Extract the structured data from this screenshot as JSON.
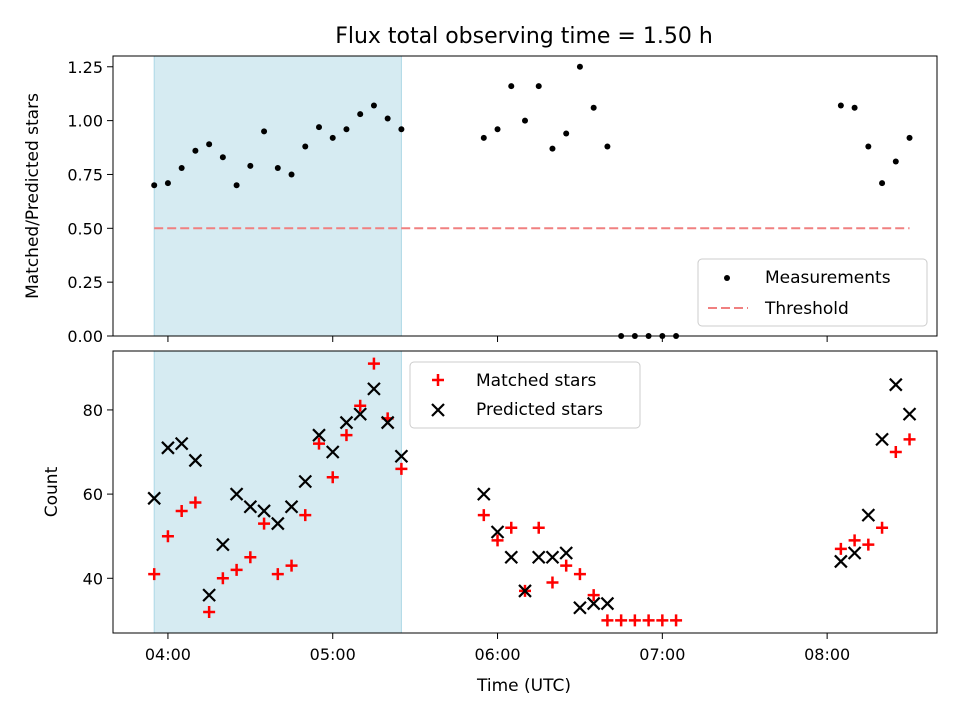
{
  "chart_data": [
    {
      "type": "scatter",
      "title": "Flux total observing time = 1.50 h",
      "xlabel": "",
      "ylabel": "Matched/Predicted stars",
      "xlim": [
        "03:40",
        "08:40"
      ],
      "ylim": [
        0,
        1.3
      ],
      "yticks": [
        "0.00",
        "0.25",
        "0.50",
        "0.75",
        "1.00",
        "1.25"
      ],
      "xticks": [
        "04:00",
        "05:00",
        "06:00",
        "07:00",
        "08:00"
      ],
      "shaded_region": {
        "start": "03:55",
        "end": "05:25",
        "color": "#add8e6"
      },
      "legend": {
        "position": "lower right",
        "entries": [
          "Measurements",
          "Threshold"
        ]
      },
      "series": [
        {
          "name": "Measurements",
          "marker": "dot",
          "color": "#000000",
          "points": [
            [
              "03:55",
              0.7
            ],
            [
              "04:00",
              0.71
            ],
            [
              "04:05",
              0.78
            ],
            [
              "04:10",
              0.86
            ],
            [
              "04:15",
              0.89
            ],
            [
              "04:20",
              0.83
            ],
            [
              "04:25",
              0.7
            ],
            [
              "04:30",
              0.79
            ],
            [
              "04:35",
              0.95
            ],
            [
              "04:40",
              0.78
            ],
            [
              "04:45",
              0.75
            ],
            [
              "04:50",
              0.88
            ],
            [
              "04:55",
              0.97
            ],
            [
              "05:00",
              0.92
            ],
            [
              "05:05",
              0.96
            ],
            [
              "05:10",
              1.03
            ],
            [
              "05:15",
              1.07
            ],
            [
              "05:20",
              1.01
            ],
            [
              "05:25",
              0.96
            ],
            [
              "05:55",
              0.92
            ],
            [
              "06:00",
              0.96
            ],
            [
              "06:05",
              1.16
            ],
            [
              "06:10",
              1.0
            ],
            [
              "06:15",
              1.16
            ],
            [
              "06:20",
              0.87
            ],
            [
              "06:25",
              0.94
            ],
            [
              "06:30",
              1.25
            ],
            [
              "06:35",
              1.06
            ],
            [
              "06:40",
              0.88
            ],
            [
              "06:45",
              0.0
            ],
            [
              "06:50",
              0.0
            ],
            [
              "06:55",
              0.0
            ],
            [
              "07:00",
              0.0
            ],
            [
              "07:05",
              0.0
            ],
            [
              "08:05",
              1.07
            ],
            [
              "08:10",
              1.06
            ],
            [
              "08:15",
              0.88
            ],
            [
              "08:20",
              0.71
            ],
            [
              "08:25",
              0.81
            ],
            [
              "08:30",
              0.92
            ]
          ]
        },
        {
          "name": "Threshold",
          "marker": "dashed-line",
          "color": "#f08080",
          "points": [
            [
              "03:55",
              0.5
            ],
            [
              "08:30",
              0.5
            ]
          ]
        }
      ]
    },
    {
      "type": "scatter",
      "title": "",
      "xlabel": "Time (UTC)",
      "ylabel": "Count",
      "xlim": [
        "03:40",
        "08:40"
      ],
      "ylim": [
        27,
        94
      ],
      "yticks": [
        "40",
        "60",
        "80"
      ],
      "xticks": [
        "04:00",
        "05:00",
        "06:00",
        "07:00",
        "08:00"
      ],
      "shaded_region": {
        "start": "03:55",
        "end": "05:25",
        "color": "#add8e6"
      },
      "legend": {
        "position": "top center",
        "entries": [
          "Matched stars",
          "Predicted stars"
        ]
      },
      "series": [
        {
          "name": "Matched stars",
          "marker": "plus",
          "color": "#ff0000",
          "points": [
            [
              "03:55",
              41
            ],
            [
              "04:00",
              50
            ],
            [
              "04:05",
              56
            ],
            [
              "04:10",
              58
            ],
            [
              "04:15",
              32
            ],
            [
              "04:20",
              40
            ],
            [
              "04:25",
              42
            ],
            [
              "04:30",
              45
            ],
            [
              "04:35",
              53
            ],
            [
              "04:40",
              41
            ],
            [
              "04:45",
              43
            ],
            [
              "04:50",
              55
            ],
            [
              "04:55",
              72
            ],
            [
              "05:00",
              64
            ],
            [
              "05:05",
              74
            ],
            [
              "05:10",
              81
            ],
            [
              "05:15",
              91
            ],
            [
              "05:20",
              78
            ],
            [
              "05:25",
              66
            ],
            [
              "05:55",
              55
            ],
            [
              "06:00",
              49
            ],
            [
              "06:05",
              52
            ],
            [
              "06:10",
              37
            ],
            [
              "06:15",
              52
            ],
            [
              "06:20",
              39
            ],
            [
              "06:25",
              43
            ],
            [
              "06:30",
              41
            ],
            [
              "06:35",
              36
            ],
            [
              "06:40",
              30
            ],
            [
              "06:45",
              30
            ],
            [
              "06:50",
              30
            ],
            [
              "06:55",
              30
            ],
            [
              "07:00",
              30
            ],
            [
              "07:05",
              30
            ],
            [
              "08:05",
              47
            ],
            [
              "08:10",
              49
            ],
            [
              "08:15",
              48
            ],
            [
              "08:20",
              52
            ],
            [
              "08:25",
              70
            ],
            [
              "08:30",
              73
            ]
          ]
        },
        {
          "name": "Predicted stars",
          "marker": "x",
          "color": "#000000",
          "points": [
            [
              "03:55",
              59
            ],
            [
              "04:00",
              71
            ],
            [
              "04:05",
              72
            ],
            [
              "04:10",
              68
            ],
            [
              "04:15",
              36
            ],
            [
              "04:20",
              48
            ],
            [
              "04:25",
              60
            ],
            [
              "04:30",
              57
            ],
            [
              "04:35",
              56
            ],
            [
              "04:40",
              53
            ],
            [
              "04:45",
              57
            ],
            [
              "04:50",
              63
            ],
            [
              "04:55",
              74
            ],
            [
              "05:00",
              70
            ],
            [
              "05:05",
              77
            ],
            [
              "05:10",
              79
            ],
            [
              "05:15",
              85
            ],
            [
              "05:20",
              77
            ],
            [
              "05:25",
              69
            ],
            [
              "05:55",
              60
            ],
            [
              "06:00",
              51
            ],
            [
              "06:05",
              45
            ],
            [
              "06:10",
              37
            ],
            [
              "06:15",
              45
            ],
            [
              "06:20",
              45
            ],
            [
              "06:25",
              46
            ],
            [
              "06:30",
              33
            ],
            [
              "06:35",
              34
            ],
            [
              "06:40",
              34
            ],
            [
              "08:05",
              44
            ],
            [
              "08:10",
              46
            ],
            [
              "08:15",
              55
            ],
            [
              "08:20",
              73
            ],
            [
              "08:25",
              86
            ],
            [
              "08:30",
              79
            ]
          ]
        }
      ]
    }
  ]
}
